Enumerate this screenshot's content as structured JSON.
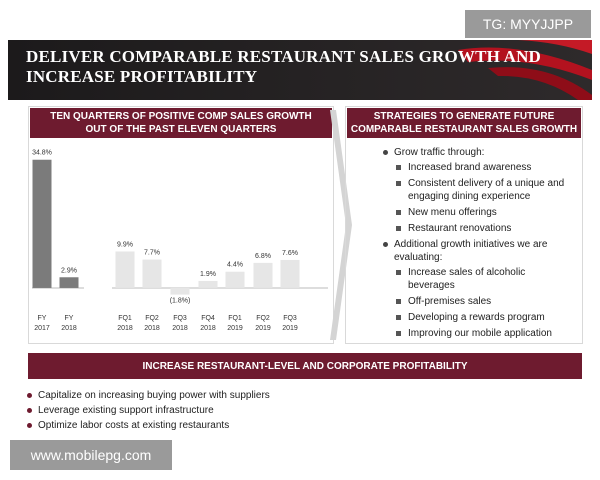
{
  "header": {
    "title": [
      "DELIVER COMPARABLE RESTAURANT SALES GROWTH AND",
      "INCREASE PROFITABILITY"
    ]
  },
  "left_panel": {
    "title": [
      "TEN QUARTERS OF POSITIVE COMP SALES GROWTH",
      "OUT OF THE PAST ELEVEN QUARTERS"
    ]
  },
  "chart_data": {
    "type": "bar",
    "categories": [
      [
        "FY",
        "2017"
      ],
      [
        "FY",
        "2018"
      ],
      [
        "FQ1",
        "2018"
      ],
      [
        "FQ2",
        "2018"
      ],
      [
        "FQ3",
        "2018"
      ],
      [
        "FQ4",
        "2018"
      ],
      [
        "FQ1",
        "2019"
      ],
      [
        "FQ2",
        "2019"
      ],
      [
        "FQ3",
        "2019"
      ]
    ],
    "values": [
      34.8,
      2.9,
      9.9,
      7.7,
      -1.8,
      1.9,
      4.4,
      6.8,
      7.6
    ],
    "value_labels": [
      "34.8%",
      "2.9%",
      "9.9%",
      "7.7%",
      "(1.8%)",
      "1.9%",
      "4.4%",
      "6.8%",
      "7.6%"
    ],
    "colors": [
      "#7b7b7b",
      "#7b7b7b",
      "#e6e6e6",
      "#e6e6e6",
      "#e6e6e6",
      "#e6e6e6",
      "#e6e6e6",
      "#e6e6e6",
      "#e6e6e6"
    ],
    "ylim": [
      -3,
      35
    ]
  },
  "right_panel": {
    "title": [
      "STRATEGIES TO GENERATE FUTURE",
      "COMPARABLE RESTAURANT SALES GROWTH"
    ],
    "items": [
      {
        "text": "Grow traffic through:",
        "sub": [
          "Increased brand awareness",
          "Consistent delivery of a unique and engaging dining experience",
          "New menu offerings",
          "Restaurant renovations"
        ]
      },
      {
        "text": "Additional growth initiatives we are evaluating:",
        "sub": [
          "Increase sales of alcoholic beverages",
          "Off-premises sales",
          "Developing a rewards program",
          "Improving our mobile application"
        ]
      }
    ]
  },
  "bottom_panel": {
    "title": "INCREASE RESTAURANT-LEVEL AND CORPORATE PROFITABILITY",
    "bullets": [
      "Capitalize on increasing buying power with suppliers",
      "Leverage existing support infrastructure",
      "Optimize labor costs at existing restaurants"
    ]
  },
  "watermarks": {
    "top": "TG: MYYJJPP",
    "bottom": "www.mobilepg.com"
  }
}
